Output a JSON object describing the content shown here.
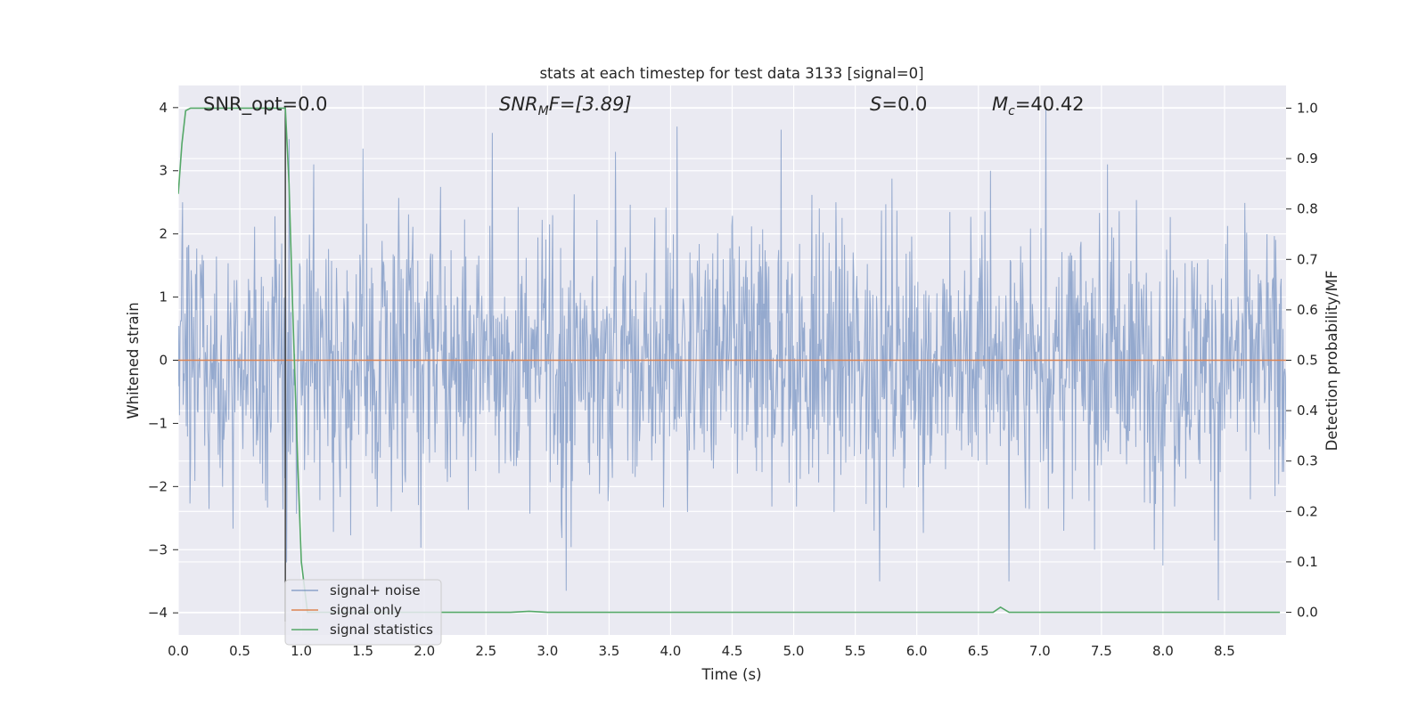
{
  "chart_data": {
    "type": "line",
    "title": "stats at each timestep for test data 3133 [signal=0]",
    "xlabel": "Time (s)",
    "ylabel_left": "Whitened strain",
    "ylabel_right": "Detection probability/MF",
    "xlim": [
      0,
      9
    ],
    "ylim_left": [
      -4.35,
      4.35
    ],
    "ylim_right": [
      -0.045,
      1.045
    ],
    "xticks": [
      "0.0",
      "0.5",
      "1.0",
      "1.5",
      "2.0",
      "2.5",
      "3.0",
      "3.5",
      "4.0",
      "4.5",
      "5.0",
      "5.5",
      "6.0",
      "6.5",
      "7.0",
      "7.5",
      "8.0",
      "8.5"
    ],
    "yticks_left": [
      "4",
      "3",
      "2",
      "1",
      "0",
      "−1",
      "−2",
      "−3",
      "−4"
    ],
    "yticks_right": [
      "1.0",
      "0.9",
      "0.8",
      "0.7",
      "0.6",
      "0.5",
      "0.4",
      "0.3",
      "0.2",
      "0.1",
      "0.0"
    ],
    "grid": true,
    "legend_position": "lower-left",
    "vertical_marker_x": 0.87,
    "annotations": {
      "snr_opt": "SNR_opt=0.0",
      "snr_mf_main": "SNR",
      "snr_mf_sub": "M",
      "snr_mf_rest": "F=[3.89]",
      "s_main": "S",
      "s_rest": "=0.0",
      "mc_main": "M",
      "mc_sub": "c",
      "mc_rest": "=40.42"
    },
    "series": [
      {
        "name": "signal+ noise",
        "axis": "left",
        "color": "#4c72b0",
        "description_values": "approx. Gaussian whitened noise, std ≈ 1, extremes ≈ ±4",
        "peaks_x": [
          0.88,
          0.9,
          1.1,
          1.5,
          2.55,
          3.15,
          3.55,
          4.05,
          4.9,
          5.7,
          6.6,
          6.75,
          7.05,
          7.55,
          8.0,
          8.45
        ],
        "peaks_y": [
          -3.2,
          3.5,
          3.1,
          3.35,
          3.6,
          -3.65,
          3.3,
          3.7,
          3.65,
          -3.5,
          3.0,
          -3.5,
          4.0,
          3.1,
          -3.25,
          -3.8
        ]
      },
      {
        "name": "signal only",
        "axis": "left",
        "color": "#dd8452",
        "x": [
          0,
          9
        ],
        "y": [
          0,
          0
        ]
      },
      {
        "name": "signal statistics",
        "axis": "right",
        "color": "#55a868",
        "x": [
          0.0,
          0.03,
          0.06,
          0.1,
          0.2,
          0.5,
          0.8,
          0.87,
          0.9,
          0.93,
          0.97,
          1.0,
          1.05,
          1.5,
          2.0,
          2.5,
          2.7,
          2.85,
          3.0,
          3.3,
          4.0,
          5.0,
          6.0,
          6.5,
          6.62,
          6.68,
          6.75,
          7.0,
          8.0,
          8.95
        ],
        "y": [
          0.83,
          0.93,
          0.995,
          1.0,
          1.0,
          1.0,
          1.0,
          1.0,
          0.85,
          0.6,
          0.3,
          0.1,
          0.0,
          0.0,
          0.0,
          0.0,
          0.0,
          0.002,
          0.0,
          0.0,
          0.0,
          0.0,
          0.0,
          0.0,
          0.0,
          0.01,
          0.0,
          0.0,
          0.0,
          0.0
        ]
      }
    ]
  }
}
